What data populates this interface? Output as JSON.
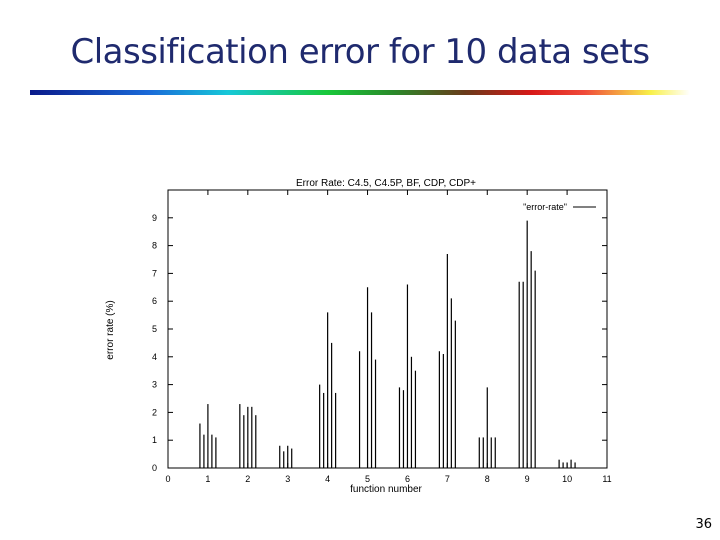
{
  "slide": {
    "title": "Classification error for 10 data sets",
    "page_number": "36"
  },
  "chart_data": {
    "type": "bar",
    "title": "Error Rate: C4.5, C4.5P, BF, CDP, CDP+",
    "xlabel": "function number",
    "ylabel": "error rate (%)",
    "xlim": [
      0,
      11
    ],
    "ylim": [
      0,
      10
    ],
    "xticks": [
      0,
      1,
      2,
      3,
      4,
      5,
      6,
      7,
      8,
      9,
      10,
      11
    ],
    "yticks": [
      0,
      1,
      2,
      3,
      4,
      5,
      6,
      7,
      8,
      9
    ],
    "grid": false,
    "legend": {
      "placement": "top-right",
      "entries": [
        "\"error-rate\""
      ]
    },
    "series": [
      {
        "name": "\"error-rate\"",
        "points": [
          [
            0.8,
            1.6
          ],
          [
            0.9,
            1.2
          ],
          [
            1.0,
            2.3
          ],
          [
            1.1,
            1.2
          ],
          [
            1.2,
            1.1
          ],
          [
            1.8,
            2.3
          ],
          [
            1.9,
            1.9
          ],
          [
            2.0,
            2.2
          ],
          [
            2.1,
            2.2
          ],
          [
            2.2,
            1.9
          ],
          [
            2.8,
            0.8
          ],
          [
            2.9,
            0.6
          ],
          [
            3.0,
            0.8
          ],
          [
            3.1,
            0.7
          ],
          [
            3.8,
            3.0
          ],
          [
            3.9,
            2.7
          ],
          [
            4.0,
            5.6
          ],
          [
            4.1,
            4.5
          ],
          [
            4.2,
            2.7
          ],
          [
            4.8,
            4.2
          ],
          [
            5.0,
            6.5
          ],
          [
            5.1,
            5.6
          ],
          [
            5.2,
            3.9
          ],
          [
            5.8,
            2.9
          ],
          [
            5.9,
            2.8
          ],
          [
            6.0,
            6.6
          ],
          [
            6.1,
            4.0
          ],
          [
            6.2,
            3.5
          ],
          [
            6.8,
            4.2
          ],
          [
            6.9,
            4.1
          ],
          [
            7.0,
            7.7
          ],
          [
            7.1,
            6.1
          ],
          [
            7.2,
            5.3
          ],
          [
            7.8,
            1.1
          ],
          [
            7.9,
            1.1
          ],
          [
            8.0,
            2.9
          ],
          [
            8.1,
            1.1
          ],
          [
            8.2,
            1.1
          ],
          [
            8.8,
            6.7
          ],
          [
            8.9,
            6.7
          ],
          [
            9.0,
            8.9
          ],
          [
            9.1,
            7.8
          ],
          [
            9.2,
            7.1
          ],
          [
            9.8,
            0.3
          ],
          [
            9.9,
            0.2
          ],
          [
            10.0,
            0.2
          ],
          [
            10.1,
            0.3
          ],
          [
            10.2,
            0.2
          ]
        ]
      }
    ]
  }
}
